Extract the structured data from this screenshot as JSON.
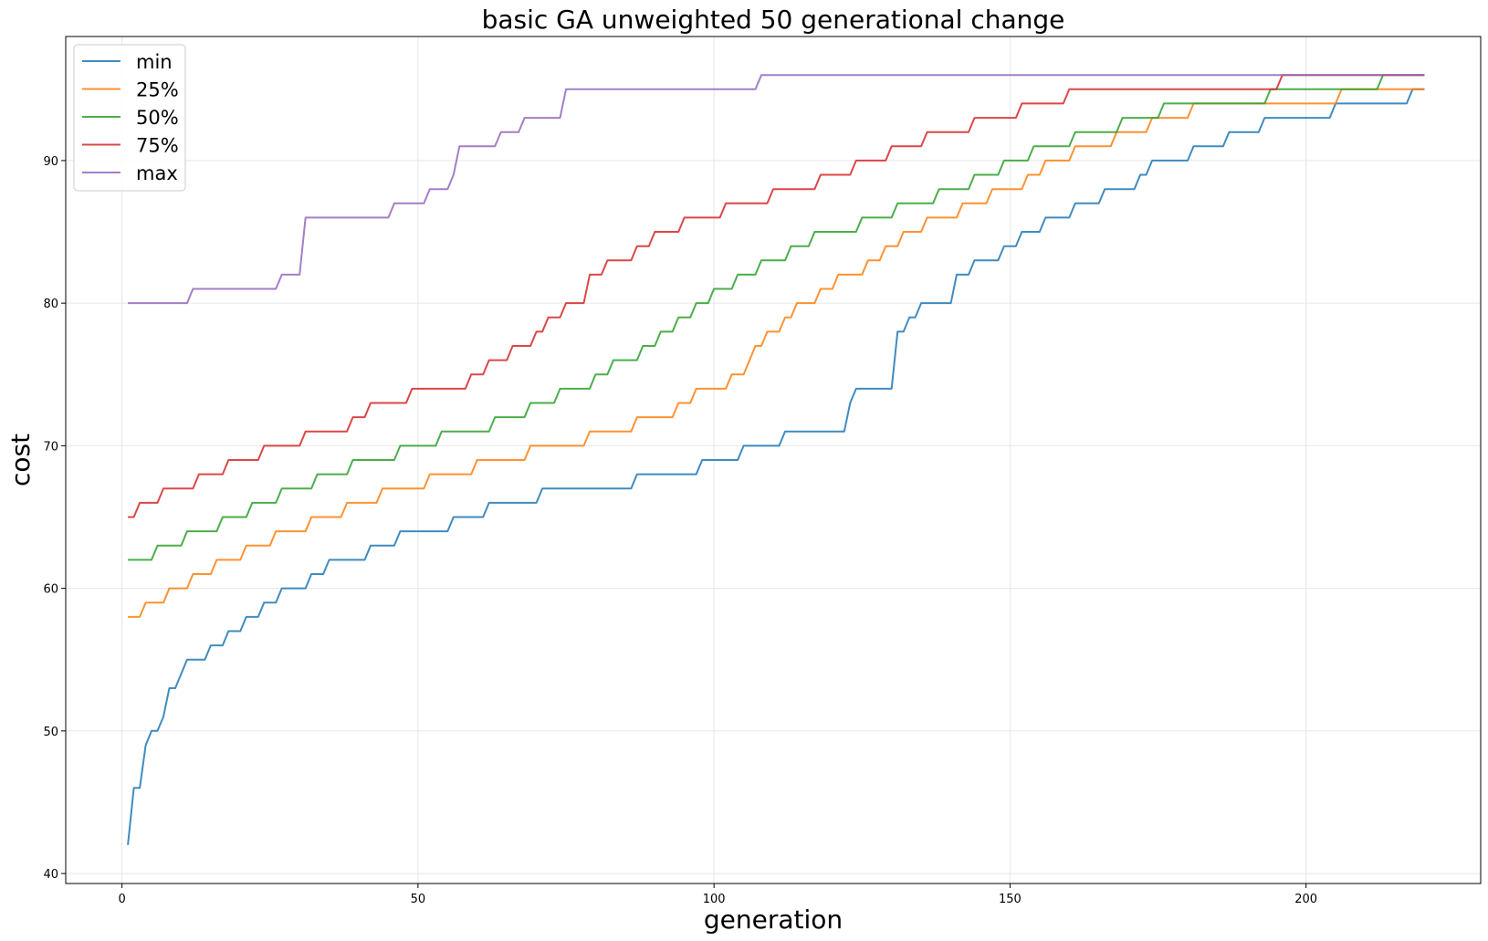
{
  "chart_data": {
    "type": "line",
    "title": "basic GA unweighted 50 generational change",
    "xlabel": "generation",
    "ylabel": "cost",
    "xlim": [
      -9.5,
      229.5
    ],
    "ylim": [
      39.3,
      98.7
    ],
    "xticks": [
      0,
      50,
      100,
      150,
      200
    ],
    "yticks": [
      40,
      50,
      60,
      70,
      80,
      90
    ],
    "grid": true,
    "legend_position": "top-left",
    "series": [
      {
        "name": "min",
        "color": "#1f77b4",
        "points": [
          [
            1,
            42
          ],
          [
            2,
            46
          ],
          [
            3,
            46
          ],
          [
            4,
            49
          ],
          [
            5,
            50
          ],
          [
            6,
            50
          ],
          [
            7,
            51
          ],
          [
            8,
            53
          ],
          [
            9,
            53
          ],
          [
            10,
            54
          ],
          [
            11,
            55
          ],
          [
            14,
            55
          ],
          [
            15,
            56
          ],
          [
            17,
            56
          ],
          [
            18,
            57
          ],
          [
            20,
            57
          ],
          [
            21,
            58
          ],
          [
            23,
            58
          ],
          [
            24,
            59
          ],
          [
            26,
            59
          ],
          [
            27,
            60
          ],
          [
            31,
            60
          ],
          [
            32,
            61
          ],
          [
            34,
            61
          ],
          [
            35,
            62
          ],
          [
            41,
            62
          ],
          [
            42,
            63
          ],
          [
            46,
            63
          ],
          [
            47,
            64
          ],
          [
            55,
            64
          ],
          [
            56,
            65
          ],
          [
            61,
            65
          ],
          [
            62,
            66
          ],
          [
            70,
            66
          ],
          [
            71,
            67
          ],
          [
            86,
            67
          ],
          [
            87,
            68
          ],
          [
            97,
            68
          ],
          [
            98,
            69
          ],
          [
            104,
            69
          ],
          [
            105,
            70
          ],
          [
            111,
            70
          ],
          [
            112,
            71
          ],
          [
            122,
            71
          ],
          [
            123,
            73
          ],
          [
            124,
            74
          ],
          [
            130,
            74
          ],
          [
            131,
            78
          ],
          [
            132,
            78
          ],
          [
            133,
            79
          ],
          [
            134,
            79
          ],
          [
            135,
            80
          ],
          [
            140,
            80
          ],
          [
            141,
            82
          ],
          [
            143,
            82
          ],
          [
            144,
            83
          ],
          [
            148,
            83
          ],
          [
            149,
            84
          ],
          [
            151,
            84
          ],
          [
            152,
            85
          ],
          [
            155,
            85
          ],
          [
            156,
            86
          ],
          [
            160,
            86
          ],
          [
            161,
            87
          ],
          [
            165,
            87
          ],
          [
            166,
            88
          ],
          [
            171,
            88
          ],
          [
            172,
            89
          ],
          [
            173,
            89
          ],
          [
            174,
            90
          ],
          [
            180,
            90
          ],
          [
            181,
            91
          ],
          [
            186,
            91
          ],
          [
            187,
            92
          ],
          [
            192,
            92
          ],
          [
            193,
            93
          ],
          [
            204,
            93
          ],
          [
            205,
            94
          ],
          [
            217,
            94
          ],
          [
            218,
            95
          ],
          [
            220,
            95
          ]
        ]
      },
      {
        "name": "25%",
        "color": "#ff7f0e",
        "points": [
          [
            1,
            58
          ],
          [
            3,
            58
          ],
          [
            4,
            59
          ],
          [
            7,
            59
          ],
          [
            8,
            60
          ],
          [
            11,
            60
          ],
          [
            12,
            61
          ],
          [
            15,
            61
          ],
          [
            16,
            62
          ],
          [
            20,
            62
          ],
          [
            21,
            63
          ],
          [
            25,
            63
          ],
          [
            26,
            64
          ],
          [
            31,
            64
          ],
          [
            32,
            65
          ],
          [
            37,
            65
          ],
          [
            38,
            66
          ],
          [
            43,
            66
          ],
          [
            44,
            67
          ],
          [
            51,
            67
          ],
          [
            52,
            68
          ],
          [
            59,
            68
          ],
          [
            60,
            69
          ],
          [
            68,
            69
          ],
          [
            69,
            70
          ],
          [
            78,
            70
          ],
          [
            79,
            71
          ],
          [
            86,
            71
          ],
          [
            87,
            72
          ],
          [
            93,
            72
          ],
          [
            94,
            73
          ],
          [
            96,
            73
          ],
          [
            97,
            74
          ],
          [
            102,
            74
          ],
          [
            103,
            75
          ],
          [
            105,
            75
          ],
          [
            106,
            76
          ],
          [
            107,
            77
          ],
          [
            108,
            77
          ],
          [
            109,
            78
          ],
          [
            111,
            78
          ],
          [
            112,
            79
          ],
          [
            113,
            79
          ],
          [
            114,
            80
          ],
          [
            117,
            80
          ],
          [
            118,
            81
          ],
          [
            120,
            81
          ],
          [
            121,
            82
          ],
          [
            125,
            82
          ],
          [
            126,
            83
          ],
          [
            128,
            83
          ],
          [
            129,
            84
          ],
          [
            131,
            84
          ],
          [
            132,
            85
          ],
          [
            135,
            85
          ],
          [
            136,
            86
          ],
          [
            141,
            86
          ],
          [
            142,
            87
          ],
          [
            146,
            87
          ],
          [
            147,
            88
          ],
          [
            152,
            88
          ],
          [
            153,
            89
          ],
          [
            155,
            89
          ],
          [
            156,
            90
          ],
          [
            160,
            90
          ],
          [
            161,
            91
          ],
          [
            167,
            91
          ],
          [
            168,
            92
          ],
          [
            173,
            92
          ],
          [
            174,
            93
          ],
          [
            180,
            93
          ],
          [
            181,
            94
          ],
          [
            193,
            94
          ],
          [
            205,
            94
          ],
          [
            206,
            95
          ],
          [
            220,
            95
          ]
        ]
      },
      {
        "name": "50%",
        "color": "#2ca02c",
        "points": [
          [
            1,
            62
          ],
          [
            5,
            62
          ],
          [
            6,
            63
          ],
          [
            10,
            63
          ],
          [
            11,
            64
          ],
          [
            16,
            64
          ],
          [
            17,
            65
          ],
          [
            21,
            65
          ],
          [
            22,
            66
          ],
          [
            26,
            66
          ],
          [
            27,
            67
          ],
          [
            32,
            67
          ],
          [
            33,
            68
          ],
          [
            38,
            68
          ],
          [
            39,
            69
          ],
          [
            46,
            69
          ],
          [
            47,
            70
          ],
          [
            53,
            70
          ],
          [
            54,
            71
          ],
          [
            62,
            71
          ],
          [
            63,
            72
          ],
          [
            68,
            72
          ],
          [
            69,
            73
          ],
          [
            73,
            73
          ],
          [
            74,
            74
          ],
          [
            79,
            74
          ],
          [
            80,
            75
          ],
          [
            82,
            75
          ],
          [
            83,
            76
          ],
          [
            87,
            76
          ],
          [
            88,
            77
          ],
          [
            90,
            77
          ],
          [
            91,
            78
          ],
          [
            93,
            78
          ],
          [
            94,
            79
          ],
          [
            96,
            79
          ],
          [
            97,
            80
          ],
          [
            99,
            80
          ],
          [
            100,
            81
          ],
          [
            103,
            81
          ],
          [
            104,
            82
          ],
          [
            107,
            82
          ],
          [
            108,
            83
          ],
          [
            112,
            83
          ],
          [
            113,
            84
          ],
          [
            116,
            84
          ],
          [
            117,
            85
          ],
          [
            124,
            85
          ],
          [
            125,
            86
          ],
          [
            130,
            86
          ],
          [
            131,
            87
          ],
          [
            137,
            87
          ],
          [
            138,
            88
          ],
          [
            143,
            88
          ],
          [
            144,
            89
          ],
          [
            148,
            89
          ],
          [
            149,
            90
          ],
          [
            153,
            90
          ],
          [
            154,
            91
          ],
          [
            160,
            91
          ],
          [
            161,
            92
          ],
          [
            168,
            92
          ],
          [
            169,
            93
          ],
          [
            175,
            93
          ],
          [
            176,
            94
          ],
          [
            186,
            94
          ],
          [
            187,
            94
          ],
          [
            193,
            94
          ],
          [
            194,
            95
          ],
          [
            212,
            95
          ],
          [
            213,
            96
          ],
          [
            220,
            96
          ]
        ]
      },
      {
        "name": "75%",
        "color": "#d62728",
        "points": [
          [
            1,
            65
          ],
          [
            2,
            65
          ],
          [
            3,
            66
          ],
          [
            6,
            66
          ],
          [
            7,
            67
          ],
          [
            12,
            67
          ],
          [
            13,
            68
          ],
          [
            17,
            68
          ],
          [
            18,
            69
          ],
          [
            23,
            69
          ],
          [
            24,
            70
          ],
          [
            30,
            70
          ],
          [
            31,
            71
          ],
          [
            38,
            71
          ],
          [
            39,
            72
          ],
          [
            41,
            72
          ],
          [
            42,
            73
          ],
          [
            48,
            73
          ],
          [
            49,
            74
          ],
          [
            58,
            74
          ],
          [
            59,
            75
          ],
          [
            61,
            75
          ],
          [
            62,
            76
          ],
          [
            65,
            76
          ],
          [
            66,
            77
          ],
          [
            69,
            77
          ],
          [
            70,
            78
          ],
          [
            71,
            78
          ],
          [
            72,
            79
          ],
          [
            74,
            79
          ],
          [
            75,
            80
          ],
          [
            78,
            80
          ],
          [
            79,
            82
          ],
          [
            81,
            82
          ],
          [
            82,
            83
          ],
          [
            86,
            83
          ],
          [
            87,
            84
          ],
          [
            89,
            84
          ],
          [
            90,
            85
          ],
          [
            94,
            85
          ],
          [
            95,
            86
          ],
          [
            101,
            86
          ],
          [
            102,
            87
          ],
          [
            109,
            87
          ],
          [
            110,
            88
          ],
          [
            117,
            88
          ],
          [
            118,
            89
          ],
          [
            123,
            89
          ],
          [
            124,
            90
          ],
          [
            129,
            90
          ],
          [
            130,
            91
          ],
          [
            135,
            91
          ],
          [
            136,
            92
          ],
          [
            143,
            92
          ],
          [
            144,
            93
          ],
          [
            151,
            93
          ],
          [
            152,
            94
          ],
          [
            159,
            94
          ],
          [
            160,
            95
          ],
          [
            177,
            95
          ],
          [
            178,
            95
          ],
          [
            195,
            95
          ],
          [
            196,
            96
          ],
          [
            220,
            96
          ]
        ]
      },
      {
        "name": "max",
        "color": "#9467bd",
        "points": [
          [
            1,
            80
          ],
          [
            11,
            80
          ],
          [
            12,
            81
          ],
          [
            26,
            81
          ],
          [
            27,
            82
          ],
          [
            30,
            82
          ],
          [
            31,
            86
          ],
          [
            45,
            86
          ],
          [
            46,
            87
          ],
          [
            51,
            87
          ],
          [
            52,
            88
          ],
          [
            55,
            88
          ],
          [
            56,
            89
          ],
          [
            57,
            91
          ],
          [
            63,
            91
          ],
          [
            64,
            92
          ],
          [
            67,
            92
          ],
          [
            68,
            93
          ],
          [
            74,
            93
          ],
          [
            75,
            95
          ],
          [
            107,
            95
          ],
          [
            108,
            96
          ],
          [
            220,
            96
          ]
        ]
      }
    ]
  }
}
